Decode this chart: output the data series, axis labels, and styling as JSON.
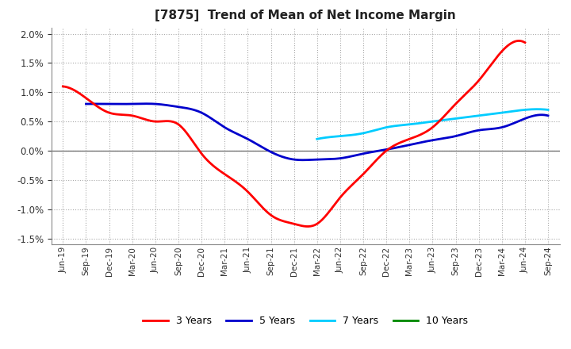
{
  "title": "[7875]  Trend of Mean of Net Income Margin",
  "background_color": "#ffffff",
  "plot_background_color": "#ffffff",
  "grid_color": "#aaaaaa",
  "x_labels": [
    "Jun-19",
    "Sep-19",
    "Dec-19",
    "Mar-20",
    "Jun-20",
    "Sep-20",
    "Dec-20",
    "Mar-21",
    "Jun-21",
    "Sep-21",
    "Dec-21",
    "Mar-22",
    "Jun-22",
    "Sep-22",
    "Dec-22",
    "Mar-23",
    "Jun-23",
    "Sep-23",
    "Dec-23",
    "Mar-24",
    "Jun-24",
    "Sep-24"
  ],
  "ylim": [
    -0.016,
    0.021
  ],
  "yticks": [
    -0.015,
    -0.01,
    -0.005,
    0.0,
    0.005,
    0.01,
    0.015,
    0.02
  ],
  "series_3yr": {
    "color": "#ff0000",
    "x": [
      0,
      1,
      2,
      3,
      4,
      5,
      6,
      7,
      8,
      9,
      10,
      11,
      12,
      13,
      14,
      15,
      16,
      17,
      18,
      19,
      20
    ],
    "y": [
      0.011,
      0.009,
      0.0065,
      0.006,
      0.005,
      0.0045,
      -0.0005,
      -0.004,
      -0.007,
      -0.011,
      -0.0125,
      -0.0125,
      -0.008,
      -0.004,
      0.0,
      0.002,
      0.004,
      0.008,
      0.012,
      0.017,
      0.0185
    ]
  },
  "series_5yr": {
    "color": "#0000cc",
    "x": [
      1,
      2,
      3,
      4,
      5,
      6,
      7,
      8,
      9,
      10,
      11,
      12,
      13,
      14,
      15,
      16,
      17,
      18,
      19,
      20,
      21
    ],
    "y": [
      0.008,
      0.008,
      0.008,
      0.008,
      0.0075,
      0.0065,
      0.004,
      0.002,
      -0.0002,
      -0.0015,
      -0.0015,
      -0.0013,
      -0.0005,
      0.0002,
      0.001,
      0.0018,
      0.0025,
      0.0035,
      0.004,
      0.0055,
      0.006
    ]
  },
  "series_7yr": {
    "color": "#00ccff",
    "x": [
      11,
      12,
      13,
      14,
      15,
      16,
      17,
      18,
      19,
      20,
      21
    ],
    "y": [
      0.002,
      0.0025,
      0.003,
      0.004,
      0.0045,
      0.005,
      0.0055,
      0.006,
      0.0065,
      0.007,
      0.007
    ]
  },
  "series_10yr": {
    "color": "#008800",
    "x": [],
    "y": []
  },
  "legend_labels": [
    "3 Years",
    "5 Years",
    "7 Years",
    "10 Years"
  ],
  "legend_colors": [
    "#ff0000",
    "#0000cc",
    "#00ccff",
    "#008800"
  ]
}
